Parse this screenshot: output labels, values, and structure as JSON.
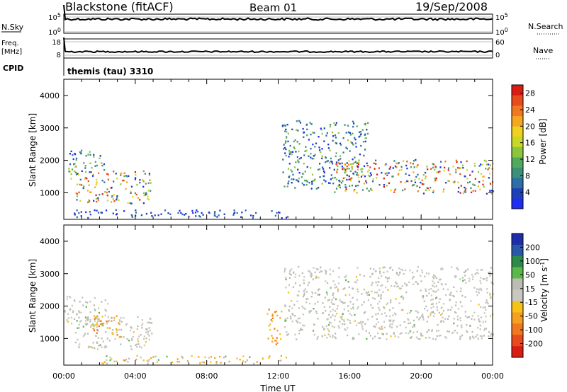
{
  "header": {
    "station": "Blackstone (fitACF)",
    "beam": "Beam 01",
    "date": "19/Sep/2008"
  },
  "top_panels": {
    "nsky": {
      "label": "N.Sky",
      "tick_top": "10^5",
      "tick_bottom": "10^0",
      "right_tick_top": "10^5",
      "right_tick_bottom": "10^0",
      "right_label": "N.Search"
    },
    "freq": {
      "label_line1": "Freq.",
      "label_line2": "[MHz]",
      "tick_top": "18",
      "tick_bottom": "8",
      "right_tick_top": "60",
      "right_tick_bottom": "0",
      "right_label": "Nave"
    },
    "cpid": {
      "label": "CPID",
      "value": "themis (tau) 3310"
    }
  },
  "chart_data": [
    {
      "type": "heatmap",
      "parameter": "Power",
      "ylabel": "Slant Range [km]",
      "xlabel": "",
      "x_ticks": [
        "00:00",
        "04:00",
        "08:00",
        "12:00",
        "16:00",
        "20:00",
        "00:00"
      ],
      "x_range_hours": [
        0,
        24
      ],
      "y_ticks": [
        1000,
        2000,
        3000,
        4000
      ],
      "ylim": [
        180,
        4500
      ],
      "colorbar": {
        "label": "Power [dB]",
        "ticks": [
          "4",
          "8",
          "12",
          "16",
          "20",
          "24",
          "28"
        ],
        "range": [
          0,
          30
        ],
        "colors": [
          "#1e2df0",
          "#1e3fb8",
          "#2e6ea6",
          "#3d8f7a",
          "#52a85c",
          "#8cc63f",
          "#c8d828",
          "#f0d020",
          "#f5a623",
          "#f07820",
          "#e84c1e",
          "#d81e14"
        ]
      },
      "regions": [
        {
          "hours": [
            0.0,
            0.7
          ],
          "range_km": [
            1400,
            1900
          ],
          "level": "medium-high"
        },
        {
          "hours": [
            0.3,
            2.3
          ],
          "range_km": [
            1600,
            2300
          ],
          "level": "medium"
        },
        {
          "hours": [
            0.6,
            4.9
          ],
          "range_km": [
            650,
            1650
          ],
          "level": "high"
        },
        {
          "hours": [
            12.2,
            17.0
          ],
          "range_km": [
            1100,
            3200
          ],
          "level": "medium"
        },
        {
          "hours": [
            15.0,
            24.0
          ],
          "range_km": [
            950,
            2000
          ],
          "level": "high"
        },
        {
          "hours": [
            0.5,
            12.5
          ],
          "range_km": [
            200,
            450
          ],
          "level": "low"
        }
      ]
    },
    {
      "type": "heatmap",
      "parameter": "Velocity",
      "ylabel": "Slant Range [km]",
      "xlabel": "Time UT",
      "x_ticks": [
        "00:00",
        "04:00",
        "08:00",
        "12:00",
        "16:00",
        "20:00",
        "00:00"
      ],
      "x_range_hours": [
        0,
        24
      ],
      "y_ticks": [
        1000,
        2000,
        3000,
        4000
      ],
      "ylim": [
        180,
        4500
      ],
      "colorbar": {
        "label": "Velocity [m s^-1]",
        "ticks": [
          "200",
          "100",
          "50",
          "15",
          "-15",
          "-50",
          "-100",
          "-200"
        ],
        "range": [
          -250,
          250
        ],
        "colors": [
          "#1e2da8",
          "#2a58a6",
          "#2e8a4a",
          "#5cb84a",
          "#bcbcb4",
          "#c8c8c0",
          "#f5c21a",
          "#f5a020",
          "#f07820",
          "#e84c1e",
          "#d81e14"
        ]
      },
      "regions": [
        {
          "hours": [
            0.0,
            2.5
          ],
          "range_km": [
            1350,
            2300
          ],
          "level": "near-zero"
        },
        {
          "hours": [
            0.6,
            4.9
          ],
          "range_km": [
            650,
            1650
          ],
          "level": "near-zero"
        },
        {
          "hours": [
            1.5,
            3.2
          ],
          "range_km": [
            1000,
            1700
          ],
          "level": "negative"
        },
        {
          "hours": [
            11.3,
            12.2
          ],
          "range_km": [
            800,
            1900
          ],
          "level": "negative"
        },
        {
          "hours": [
            12.3,
            24.0
          ],
          "range_km": [
            950,
            3200
          ],
          "level": "near-zero"
        },
        {
          "hours": [
            2.0,
            12.5
          ],
          "range_km": [
            200,
            450
          ],
          "level": "mixed"
        }
      ]
    }
  ]
}
